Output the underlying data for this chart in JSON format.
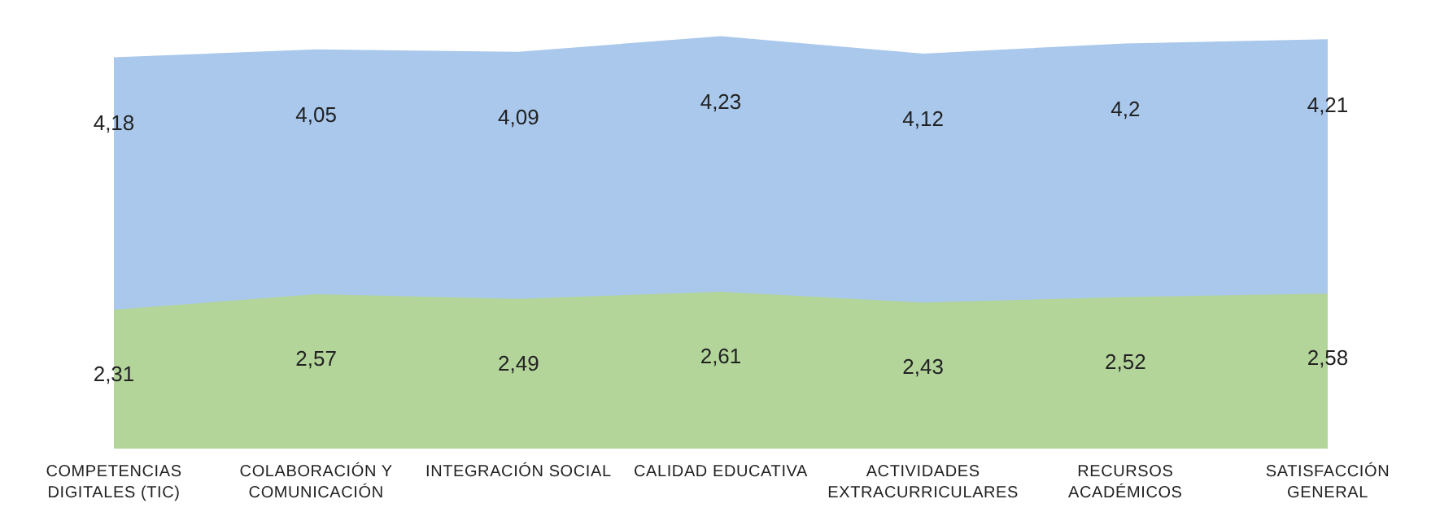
{
  "chart_data": {
    "type": "area",
    "stacked": true,
    "categories": [
      "COMPETENCIAS DIGITALES (TIC)",
      "COLABORACIÓN Y COMUNICACIÓN",
      "INTEGRACIÓN SOCIAL",
      "CALIDAD EDUCATIVA",
      "ACTIVIDADES EXTRACURRICULARES",
      "RECURSOS ACADÉMICOS",
      "SATISFACCIÓN GENERAL"
    ],
    "series": [
      {
        "color": "#b3d59a",
        "values": [
          2.31,
          2.57,
          2.49,
          2.61,
          2.43,
          2.52,
          2.58
        ],
        "value_labels": [
          "2,31",
          "2,57",
          "2,49",
          "2,61",
          "2,43",
          "2,52",
          "2,58"
        ]
      },
      {
        "color": "#a9c8ec",
        "values": [
          4.18,
          4.05,
          4.09,
          4.23,
          4.12,
          4.2,
          4.21
        ],
        "value_labels": [
          "4,18",
          "4,05",
          "4,09",
          "4,23",
          "4,12",
          "4,2",
          "4,21"
        ]
      }
    ]
  }
}
